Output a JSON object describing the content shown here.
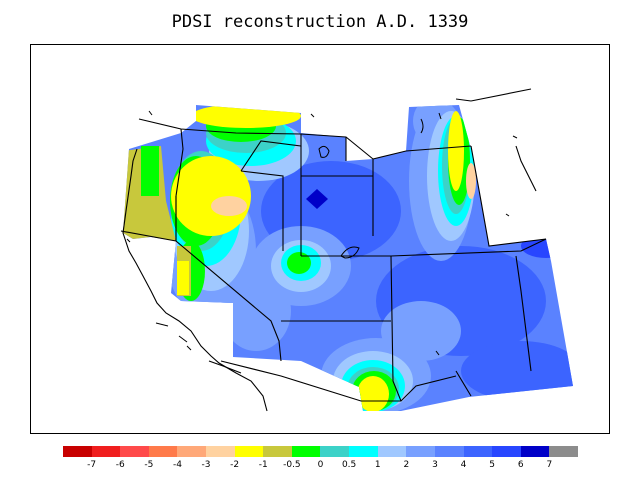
{
  "title": "PDSI reconstruction A.D. 1339",
  "legend": {
    "colors": [
      "#c80000",
      "#f01e1e",
      "#ff4a4a",
      "#ff7a4a",
      "#ffa878",
      "#ffd2a0",
      "#ffff00",
      "#c8c83c",
      "#00ff00",
      "#3cd2c8",
      "#00ffff",
      "#a0c8ff",
      "#78a0ff",
      "#5a82ff",
      "#3c64ff",
      "#2846ff",
      "#0000c8",
      "#8c8c8c"
    ],
    "labels": [
      "-7",
      "-6",
      "-5",
      "-4",
      "-3",
      "-2",
      "-1",
      "-0.5",
      "0",
      "0.5",
      "1",
      "2",
      "3",
      "4",
      "5",
      "6",
      "7"
    ]
  }
}
